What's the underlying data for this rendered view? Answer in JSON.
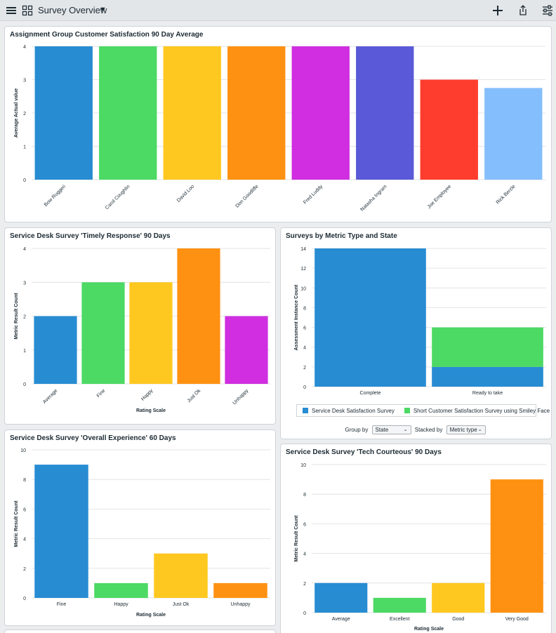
{
  "header": {
    "title": "Survey Overview",
    "menu_icon": "hamburger-menu-icon",
    "grid_icon": "grid-icon",
    "caret_icon": "caret-down-icon",
    "add_icon": "plus-icon",
    "share_icon": "share-icon",
    "filter_icon": "sliders-icon"
  },
  "colors": {
    "blue": "#288cd2",
    "green": "#4cd964",
    "yellow": "#ffc820",
    "orange": "#ff9112",
    "magenta": "#d02ee0",
    "indigo": "#5a5ad8",
    "red": "#ff3d2e",
    "lightblue": "#85befd"
  },
  "charts": {
    "assignment": {
      "title": "Assignment Group Customer Satisfaction 90 Day Average",
      "chart_data": {
        "type": "bar",
        "categories": [
          "Bow Ruggeri",
          "Carol Coughlin",
          "David Loo",
          "Don Goodliffe",
          "Fred Luddy",
          "Natasha Ingram",
          "Joe Employee",
          "Rick Berzle"
        ],
        "values": [
          4,
          4,
          4,
          4,
          4,
          4,
          3,
          2.75
        ],
        "ylabel": "Average Actual value",
        "xlabel": "",
        "ylim": [
          0,
          4
        ],
        "yticks": [
          "0",
          "1",
          "2",
          "3",
          "4"
        ],
        "bar_colors": [
          "#288cd2",
          "#4cd964",
          "#ffc820",
          "#ff9112",
          "#d02ee0",
          "#5a5ad8",
          "#ff3d2e",
          "#85befd"
        ]
      }
    },
    "timely": {
      "title": "Service Desk Survey 'Timely Response' 90 Days",
      "chart_data": {
        "type": "bar",
        "categories": [
          "Average",
          "Fine",
          "Happy",
          "Just Ok",
          "Unhappy"
        ],
        "values": [
          2,
          3,
          3,
          4,
          2
        ],
        "ylabel": "Metric Result Count",
        "xlabel": "Rating Scale",
        "ylim": [
          0,
          4
        ],
        "yticks": [
          "0",
          "1",
          "2",
          "3",
          "4"
        ],
        "bar_colors": [
          "#288cd2",
          "#4cd964",
          "#ffc820",
          "#ff9112",
          "#d02ee0"
        ]
      }
    },
    "metric": {
      "title": "Surveys by Metric Type and State",
      "chart_data": {
        "type": "bar",
        "stacked": true,
        "categories": [
          "Complete",
          "Ready to take"
        ],
        "series": [
          {
            "name": "Service Desk Satisfaction Survey",
            "values": [
              14,
              2
            ],
            "color": "#288cd2"
          },
          {
            "name": "Short Customer Satisfaction Survey using Smiley Face",
            "values": [
              0,
              4
            ],
            "color": "#4cd964"
          }
        ],
        "ylabel": "Assessment Instance Count",
        "xlabel": "",
        "ylim": [
          0,
          14
        ],
        "yticks": [
          "0",
          "2",
          "4",
          "6",
          "8",
          "10",
          "12",
          "14"
        ]
      },
      "controls": {
        "group_by_label": "Group by",
        "group_by_value": "State",
        "stacked_by_label": "Stacked by",
        "stacked_by_value": "Metric type"
      }
    },
    "overall": {
      "title": "Service Desk Survey 'Overall Experience' 60 Days",
      "chart_data": {
        "type": "bar",
        "categories": [
          "Fine",
          "Happy",
          "Just Ok",
          "Unhappy"
        ],
        "values": [
          9,
          1,
          3,
          1
        ],
        "ylabel": "Metric Result Count",
        "xlabel": "Rating Scale",
        "ylim": [
          0,
          10
        ],
        "yticks": [
          "0",
          "2",
          "4",
          "6",
          "8",
          "10"
        ],
        "bar_colors": [
          "#288cd2",
          "#4cd964",
          "#ffc820",
          "#ff9112"
        ]
      }
    },
    "courteous": {
      "title": "Service Desk Survey 'Tech Courteous' 90 Days",
      "chart_data": {
        "type": "bar",
        "categories": [
          "Average",
          "Excellent",
          "Good",
          "Very Good"
        ],
        "values": [
          2,
          1,
          2,
          9
        ],
        "ylabel": "Metric Result Count",
        "xlabel": "Rating Scale",
        "ylim": [
          0,
          10
        ],
        "yticks": [
          "0",
          "2",
          "4",
          "6",
          "8",
          "10"
        ],
        "bar_colors": [
          "#288cd2",
          "#4cd964",
          "#ffc820",
          "#ff9112"
        ]
      }
    }
  }
}
